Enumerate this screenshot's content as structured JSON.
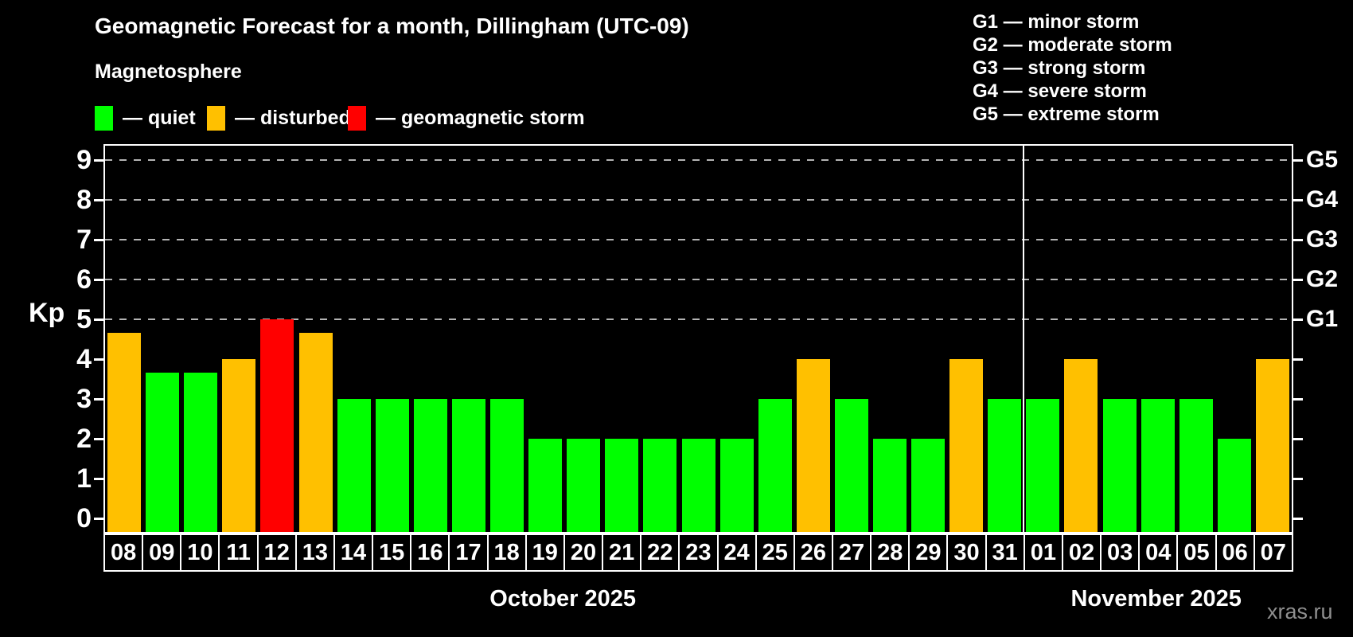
{
  "watermark": "xras.ru",
  "legend": {
    "items": [
      {
        "name": "quiet",
        "label": "— quiet",
        "color": "#00ff00"
      },
      {
        "name": "disturbed",
        "label": "— disturbed",
        "color": "#ffc000"
      },
      {
        "name": "storm",
        "label": "— geomagnetic storm",
        "color": "#ff0000"
      }
    ],
    "item_offsets": [
      119,
      260,
      437
    ]
  },
  "storm_scale_legend": {
    "lines": [
      "G1 — minor storm",
      "G2 — moderate storm",
      "G3 — strong storm",
      "G4 — severe storm",
      "G5 — extreme storm"
    ]
  },
  "chart_data": {
    "type": "bar",
    "title": "Geomagnetic Forecast for a month, Dillingham (UTC-09)",
    "subtitle": "Magnetosphere",
    "ylabel": "Kp",
    "ylim": [
      0,
      9
    ],
    "yticks": [
      0,
      1,
      2,
      3,
      4,
      5,
      6,
      7,
      8,
      9
    ],
    "grid_levels": [
      5,
      6,
      7,
      8,
      9
    ],
    "grid_on": true,
    "right_axis_labels": [
      {
        "kp": 5,
        "label": "G1"
      },
      {
        "kp": 6,
        "label": "G2"
      },
      {
        "kp": 7,
        "label": "G3"
      },
      {
        "kp": 8,
        "label": "G4"
      },
      {
        "kp": 9,
        "label": "G5"
      }
    ],
    "months": [
      {
        "label": "October 2025",
        "days": 24
      },
      {
        "label": "November 2025",
        "days": 7
      }
    ],
    "categories": [
      "08",
      "09",
      "10",
      "11",
      "12",
      "13",
      "14",
      "15",
      "16",
      "17",
      "18",
      "19",
      "20",
      "21",
      "22",
      "23",
      "24",
      "25",
      "26",
      "27",
      "28",
      "29",
      "30",
      "31",
      "01",
      "02",
      "03",
      "04",
      "05",
      "06",
      "07"
    ],
    "values": [
      4.67,
      3.67,
      3.67,
      4,
      5,
      4.67,
      3,
      3,
      3,
      3,
      3,
      2,
      2,
      2,
      2,
      2,
      2,
      3,
      4,
      3,
      2,
      2,
      4,
      3,
      3,
      4,
      3,
      3,
      3,
      2,
      4
    ],
    "statuses": [
      "disturbed",
      "quiet",
      "quiet",
      "disturbed",
      "storm",
      "disturbed",
      "quiet",
      "quiet",
      "quiet",
      "quiet",
      "quiet",
      "quiet",
      "quiet",
      "quiet",
      "quiet",
      "quiet",
      "quiet",
      "quiet",
      "disturbed",
      "quiet",
      "quiet",
      "quiet",
      "disturbed",
      "quiet",
      "quiet",
      "disturbed",
      "quiet",
      "quiet",
      "quiet",
      "quiet",
      "disturbed"
    ],
    "status_colors": {
      "quiet": "#00ff00",
      "disturbed": "#ffc000",
      "storm": "#ff0000"
    }
  }
}
